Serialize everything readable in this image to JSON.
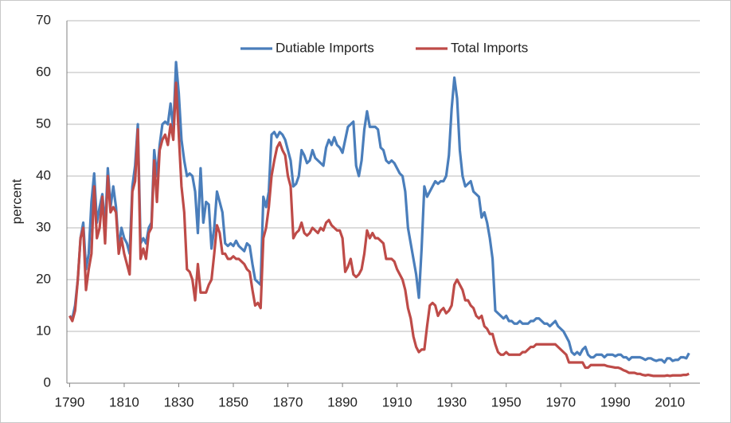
{
  "chart_data": {
    "type": "line",
    "y_label": "percent",
    "x": [
      1790,
      1791,
      1792,
      1793,
      1794,
      1795,
      1796,
      1797,
      1798,
      1799,
      1800,
      1801,
      1802,
      1803,
      1804,
      1805,
      1806,
      1807,
      1808,
      1809,
      1810,
      1811,
      1812,
      1813,
      1814,
      1815,
      1816,
      1817,
      1818,
      1819,
      1820,
      1821,
      1822,
      1823,
      1824,
      1825,
      1826,
      1827,
      1828,
      1829,
      1830,
      1831,
      1832,
      1833,
      1834,
      1835,
      1836,
      1837,
      1838,
      1839,
      1840,
      1841,
      1842,
      1843,
      1844,
      1845,
      1846,
      1847,
      1848,
      1849,
      1850,
      1851,
      1852,
      1853,
      1854,
      1855,
      1856,
      1857,
      1858,
      1859,
      1860,
      1861,
      1862,
      1863,
      1864,
      1865,
      1866,
      1867,
      1868,
      1869,
      1870,
      1871,
      1872,
      1873,
      1874,
      1875,
      1876,
      1877,
      1878,
      1879,
      1880,
      1881,
      1882,
      1883,
      1884,
      1885,
      1886,
      1887,
      1888,
      1889,
      1890,
      1891,
      1892,
      1893,
      1894,
      1895,
      1896,
      1897,
      1898,
      1899,
      1900,
      1901,
      1902,
      1903,
      1904,
      1905,
      1906,
      1907,
      1908,
      1909,
      1910,
      1911,
      1912,
      1913,
      1914,
      1915,
      1916,
      1917,
      1918,
      1919,
      1920,
      1921,
      1922,
      1923,
      1924,
      1925,
      1926,
      1927,
      1928,
      1929,
      1930,
      1931,
      1932,
      1933,
      1934,
      1935,
      1936,
      1937,
      1938,
      1939,
      1940,
      1941,
      1942,
      1943,
      1944,
      1945,
      1946,
      1947,
      1948,
      1949,
      1950,
      1951,
      1952,
      1953,
      1954,
      1955,
      1956,
      1957,
      1958,
      1959,
      1960,
      1961,
      1962,
      1963,
      1964,
      1965,
      1966,
      1967,
      1968,
      1969,
      1970,
      1971,
      1972,
      1973,
      1974,
      1975,
      1976,
      1977,
      1978,
      1979,
      1980,
      1981,
      1982,
      1983,
      1984,
      1985,
      1986,
      1987,
      1988,
      1989,
      1990,
      1991,
      1992,
      1993,
      1994,
      1995,
      1996,
      1997,
      1998,
      1999,
      2000,
      2001,
      2002,
      2003,
      2004,
      2005,
      2006,
      2007,
      2008,
      2009,
      2010,
      2011,
      2012,
      2013,
      2014,
      2015,
      2016,
      2017
    ],
    "series": [
      {
        "name": "Dutiable Imports",
        "color": "#4a7ebb",
        "values": [
          13,
          12.5,
          15,
          20,
          28,
          31,
          22,
          25,
          35,
          40.5,
          31,
          34,
          36.5,
          30,
          41.5,
          34,
          38,
          34,
          26,
          30,
          28,
          27,
          25,
          38,
          42,
          50,
          27,
          28,
          27,
          30,
          31,
          45,
          40,
          46,
          50,
          50.5,
          50,
          54,
          49,
          62,
          56,
          47,
          43,
          40,
          40.5,
          40,
          37,
          29,
          41.5,
          31,
          35,
          34.5,
          26,
          30,
          37,
          35,
          33,
          27,
          26.5,
          27,
          26.5,
          27.5,
          26.5,
          26,
          25.5,
          27,
          26.5,
          23,
          20,
          19.5,
          19,
          36,
          34,
          37,
          48,
          48.5,
          47.5,
          48.5,
          48,
          47,
          45,
          43,
          38,
          38.5,
          40,
          45,
          44,
          42.5,
          43,
          45,
          43.5,
          43,
          42.5,
          42,
          45.5,
          47,
          46,
          47.5,
          46,
          45.5,
          44.5,
          47,
          49.5,
          50,
          50.5,
          42,
          40,
          43,
          49,
          52.5,
          49.5,
          49.5,
          49.5,
          49,
          45.5,
          45,
          43,
          42.5,
          43,
          42.5,
          41.5,
          40.5,
          40,
          37,
          30,
          27,
          24,
          21,
          16.5,
          26,
          38,
          36,
          37,
          38,
          39,
          38.5,
          39,
          39,
          40,
          44,
          53,
          59,
          55,
          45,
          40,
          38,
          38.5,
          39,
          37,
          36.5,
          36,
          32,
          33,
          31,
          28,
          24,
          14,
          13.5,
          13,
          12.5,
          13,
          12,
          12,
          11.5,
          11.5,
          12,
          11.5,
          11.5,
          11.5,
          12,
          12,
          12.5,
          12.5,
          12,
          11.5,
          11.5,
          11,
          11.5,
          12,
          11,
          10.5,
          10,
          9,
          8,
          6,
          5.5,
          6,
          5.5,
          6.5,
          7,
          5.5,
          5,
          5,
          5.5,
          5.5,
          5.5,
          5,
          5.5,
          5.5,
          5.5,
          5.2,
          5.5,
          5.5,
          5,
          5,
          4.5,
          5,
          5,
          5,
          5,
          4.8,
          4.5,
          4.8,
          4.8,
          4.5,
          4.3,
          4.5,
          4.5,
          4,
          4.8,
          4.8,
          4.3,
          4.5,
          4.5,
          5,
          5,
          4.8,
          5.8
        ]
      },
      {
        "name": "Total Imports",
        "color": "#be4b48",
        "values": [
          13,
          12,
          14,
          20,
          28,
          30,
          18,
          22,
          25,
          38,
          28,
          30,
          36,
          27,
          40,
          33,
          34,
          33,
          25,
          28,
          25,
          23,
          21,
          37,
          39,
          49,
          24,
          26,
          24,
          29,
          30,
          43,
          35,
          45,
          47,
          48,
          46,
          50,
          47,
          58,
          48,
          38,
          33,
          22,
          21.5,
          20,
          16,
          23,
          17.5,
          17.5,
          17.5,
          19,
          20,
          25,
          30.5,
          29,
          25,
          25,
          24,
          24,
          24.5,
          24,
          24,
          23.5,
          23,
          22,
          21.5,
          18,
          15,
          15.5,
          14.5,
          28,
          30,
          34,
          40,
          43,
          45.5,
          46.5,
          45,
          44,
          40,
          38,
          28,
          29,
          29.5,
          31,
          29,
          28.5,
          29,
          30,
          29.5,
          29,
          30,
          29.5,
          31,
          31.5,
          30.5,
          30,
          29.5,
          29.5,
          28,
          21.5,
          22.5,
          24,
          21,
          20.5,
          21,
          22,
          25,
          29.5,
          28,
          29,
          28,
          28,
          27.5,
          27,
          24,
          24,
          24,
          23.5,
          22,
          21,
          20,
          18,
          14.5,
          12.5,
          9,
          7,
          6,
          6.5,
          6.5,
          11,
          15,
          15.5,
          15,
          13,
          14,
          14.5,
          13.5,
          14,
          15,
          19,
          20,
          19,
          18,
          16,
          16,
          15,
          14.5,
          13,
          12.5,
          13,
          11,
          10.5,
          9.5,
          9.5,
          7.5,
          6,
          5.5,
          5.5,
          6,
          5.5,
          5.5,
          5.5,
          5.5,
          5.5,
          6,
          6,
          6.5,
          7,
          7,
          7.5,
          7.5,
          7.5,
          7.5,
          7.5,
          7.5,
          7.5,
          7.5,
          7,
          6.5,
          6,
          5.5,
          4,
          4,
          4,
          4,
          4,
          4,
          3,
          3,
          3.5,
          3.5,
          3.5,
          3.5,
          3.5,
          3.5,
          3.3,
          3.2,
          3.1,
          3,
          3,
          2.8,
          2.5,
          2.3,
          2,
          2,
          2,
          1.8,
          1.8,
          1.6,
          1.5,
          1.6,
          1.5,
          1.4,
          1.4,
          1.4,
          1.4,
          1.4,
          1.5,
          1.4,
          1.5,
          1.5,
          1.5,
          1.5,
          1.6,
          1.6,
          1.8
        ]
      }
    ],
    "xlim": [
      1789,
      2021
    ],
    "xticks": [
      1790,
      1810,
      1830,
      1850,
      1870,
      1890,
      1910,
      1930,
      1950,
      1970,
      1990,
      2010
    ],
    "ylim": [
      0,
      70
    ],
    "yticks": [
      0,
      10,
      20,
      30,
      40,
      50,
      60,
      70
    ],
    "grid": true,
    "legend": "top"
  }
}
